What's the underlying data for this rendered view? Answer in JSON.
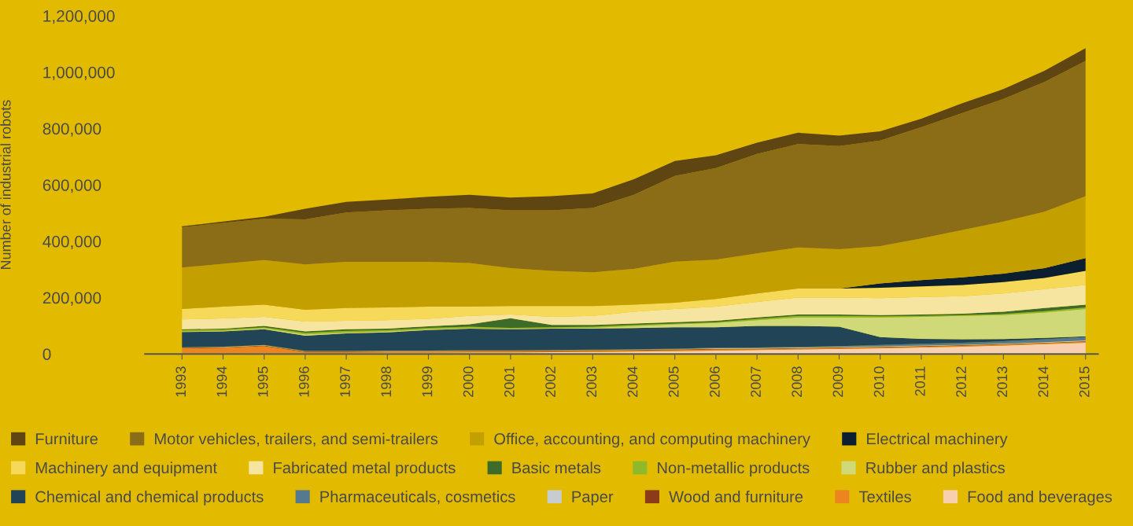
{
  "chart_data": {
    "type": "area",
    "stacked": true,
    "ylabel": "Number of industrial robots",
    "x": [
      1993,
      1994,
      1995,
      1996,
      1997,
      1998,
      1999,
      2000,
      2001,
      2002,
      2003,
      2004,
      2005,
      2006,
      2007,
      2008,
      2009,
      2010,
      2011,
      2012,
      2013,
      2014,
      2015
    ],
    "xlim": [
      1992.1,
      2015.3
    ],
    "xticks": [
      1993,
      1994,
      1995,
      1996,
      1997,
      1998,
      1999,
      2000,
      2001,
      2002,
      2003,
      2004,
      2005,
      2006,
      2007,
      2008,
      2009,
      2010,
      2011,
      2012,
      2013,
      2014,
      2015
    ],
    "ylim": [
      0,
      1200000
    ],
    "yticks": [
      0,
      {
        "value": 200000,
        "label": "200,000"
      },
      {
        "value": 400000,
        "label": "400,000"
      },
      {
        "value": 600000,
        "label": "600,000"
      },
      {
        "value": 800000,
        "label": "800,000"
      },
      {
        "value": 1000000,
        "label": "1,000,000"
      },
      {
        "value": 1200000,
        "label": "1,200,000"
      }
    ],
    "grid": false,
    "legend": "bottom",
    "series": [
      {
        "name": "Food and beverages",
        "color": "#f8d0b0",
        "values": [
          2000,
          2000,
          3000,
          3000,
          3000,
          4000,
          4000,
          5000,
          5000,
          6000,
          7000,
          8000,
          10000,
          12000,
          14000,
          16000,
          18000,
          20000,
          23000,
          26000,
          30000,
          35000,
          40000
        ]
      },
      {
        "name": "Textiles",
        "color": "#ec8520",
        "values": [
          18000,
          20000,
          25000,
          4000,
          4000,
          4000,
          4000,
          4000,
          4000,
          4000,
          4000,
          4000,
          4000,
          4000,
          3000,
          3000,
          3000,
          3000,
          3000,
          3000,
          3000,
          3000,
          3000
        ]
      },
      {
        "name": "Wood and furniture",
        "color": "#8b3a1a",
        "values": [
          2000,
          2000,
          2000,
          2000,
          2000,
          2000,
          2000,
          2000,
          2000,
          2000,
          2000,
          2000,
          2000,
          2000,
          2000,
          2000,
          2000,
          2000,
          2000,
          2000,
          2000,
          2000,
          2000
        ]
      },
      {
        "name": "Paper",
        "color": "#c6ccd0",
        "values": [
          1000,
          1000,
          1000,
          1000,
          1000,
          1000,
          1000,
          1000,
          1000,
          1000,
          1000,
          1000,
          1000,
          2000,
          2000,
          2000,
          2000,
          2000,
          2000,
          2000,
          2000,
          2000,
          3000
        ]
      },
      {
        "name": "Pharmaceuticals, cosmetics",
        "color": "#557a8f",
        "values": [
          1000,
          1000,
          1000,
          1000,
          1000,
          1000,
          1000,
          1000,
          1000,
          1000,
          1000,
          2000,
          2000,
          2000,
          2000,
          2000,
          3000,
          5000,
          6000,
          7000,
          8000,
          10000,
          12000
        ]
      },
      {
        "name": "Chemical and chemical products",
        "color": "#214457",
        "values": [
          54000,
          54000,
          56000,
          54000,
          62000,
          65000,
          73000,
          77000,
          75000,
          76000,
          75000,
          75000,
          76000,
          73000,
          77000,
          75000,
          69000,
          28000,
          18000,
          12000,
          8000,
          5000,
          3000
        ]
      },
      {
        "name": "Rubber and plastics",
        "color": "#cfd977",
        "values": [
          2000,
          2000,
          3000,
          5000,
          3000,
          3000,
          3000,
          2000,
          1000,
          2000,
          3000,
          7000,
          10000,
          15000,
          20000,
          30000,
          33000,
          70000,
          78000,
          83000,
          85000,
          90000,
          97000
        ]
      },
      {
        "name": "Non-metallic products",
        "color": "#8db92a",
        "values": [
          5000,
          5000,
          4000,
          5000,
          6000,
          5000,
          5000,
          5000,
          4000,
          3000,
          4000,
          4000,
          3000,
          3000,
          5000,
          5000,
          5000,
          4000,
          3000,
          3000,
          4000,
          5000,
          5000
        ]
      },
      {
        "name": "Basic metals",
        "color": "#3d6b2a",
        "values": [
          3000,
          3000,
          5000,
          5000,
          6000,
          5000,
          5000,
          8000,
          34000,
          8000,
          6000,
          5000,
          5000,
          5000,
          5000,
          5000,
          5000,
          4000,
          5000,
          5000,
          8000,
          11000,
          10000
        ]
      },
      {
        "name": "Fabricated metal products",
        "color": "#f6e5a0",
        "values": [
          35000,
          36000,
          32000,
          35000,
          30000,
          30000,
          27000,
          30000,
          13000,
          29000,
          32000,
          42000,
          47000,
          50000,
          55000,
          60000,
          60000,
          60000,
          62000,
          62000,
          65000,
          67000,
          70000
        ]
      },
      {
        "name": "Machinery and equipment",
        "color": "#f7d95a",
        "values": [
          37000,
          42000,
          43000,
          42000,
          45000,
          45000,
          43000,
          33000,
          30000,
          38000,
          35000,
          25000,
          22000,
          27000,
          30000,
          32000,
          32000,
          37000,
          38000,
          40000,
          40000,
          40000,
          50000
        ]
      },
      {
        "name": "Electrical machinery",
        "color": "#0b1f30",
        "values": [
          0,
          0,
          0,
          0,
          0,
          0,
          0,
          0,
          0,
          0,
          0,
          0,
          0,
          0,
          0,
          0,
          0,
          15000,
          22000,
          27000,
          30000,
          35000,
          45000
        ]
      },
      {
        "name": "Office, accounting, and computing machinery",
        "color": "#c49f00",
        "values": [
          147000,
          152000,
          158000,
          161000,
          164000,
          162000,
          159000,
          155000,
          135000,
          125000,
          120000,
          127000,
          146000,
          140000,
          142000,
          146000,
          140000,
          133000,
          148000,
          168000,
          185000,
          200000,
          220000
        ]
      },
      {
        "name": "Motor vehicles, trailers, and semi-trailers",
        "color": "#8b6d17",
        "values": [
          143000,
          145000,
          147000,
          160000,
          175000,
          183000,
          188000,
          195000,
          205000,
          215000,
          228000,
          263000,
          304000,
          325000,
          353000,
          367000,
          366000,
          374000,
          395000,
          415000,
          435000,
          460000,
          480000
        ]
      },
      {
        "name": "Furniture",
        "color": "#5e4511",
        "values": [
          3000,
          5000,
          7000,
          37000,
          38000,
          38000,
          43000,
          47000,
          45000,
          50000,
          52000,
          55000,
          53000,
          45000,
          40000,
          40000,
          37000,
          33000,
          30000,
          35000,
          35000,
          40000,
          45000
        ]
      }
    ]
  }
}
